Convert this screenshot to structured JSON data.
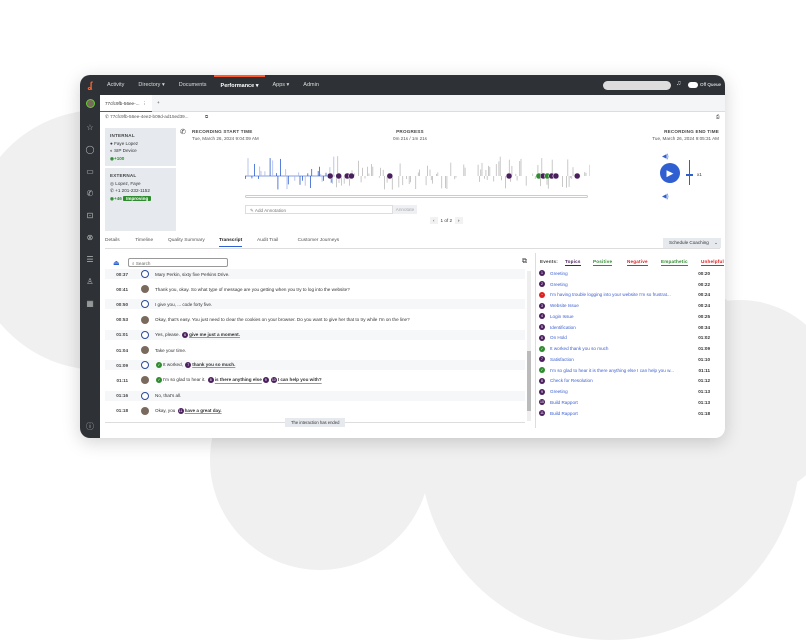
{
  "nav": {
    "items": [
      "Activity",
      "Directory ▾",
      "Documents",
      "Performance ▾",
      "Apps ▾",
      "Admin"
    ],
    "active": "Performance ▾",
    "queue": "Off Queue"
  },
  "tabbar": {
    "tab": "77cfc9fb-56ee-...",
    "add": "+"
  },
  "url": "77cfc9fb-56ee-4ee2-b09d-ad15ed39...",
  "internal": {
    "label": "INTERNAL",
    "name": "Faye Lopez",
    "device": "SIP Device",
    "score": "+100"
  },
  "external": {
    "label": "EXTERNAL",
    "name": "Lopez, Faye",
    "phone": "+1 201-232-1152",
    "score": "+46",
    "trend": "Improving"
  },
  "recording": {
    "start_label": "RECORDING START TIME",
    "start": "Tue, March 26, 2024 9:04:09 AM",
    "progress_label": "PROGRESS",
    "progress": "0m 21s / 1m 21s",
    "end_label": "RECORDING END TIME",
    "end": "Tue, March 26, 2024 9:05:31 AM",
    "played_fraction": 0.26,
    "speed": "x1"
  },
  "annotation": {
    "placeholder": "Add Annotation",
    "button": "Annotate"
  },
  "pager": {
    "text": "1 of 2"
  },
  "tabs": [
    "Details",
    "Timeline",
    "Quality Summary",
    "Transcript",
    "Audit Trail",
    "Customer Journeys"
  ],
  "active_tab": "Transcript",
  "schedule": "Schedule Coaching",
  "search_placeholder": "Search",
  "transcript": [
    {
      "t": "00:37",
      "who": "customer",
      "parts": [
        {
          "text": "Mary Perkin, sixty five Perkins Drive."
        }
      ]
    },
    {
      "t": "00:41",
      "who": "agent",
      "parts": [
        {
          "text": "Thank you, okay. So what type of message are you getting when you try to log into the website?"
        }
      ]
    },
    {
      "t": "00:50",
      "who": "customer",
      "parts": [
        {
          "text": "I give you, ... code forty five."
        }
      ]
    },
    {
      "t": "00:53",
      "who": "agent",
      "parts": [
        {
          "text": "Okay, that's easy. You just need to clear the cookies on your browser. Do you want to give her that to try while I'm on the line?"
        }
      ]
    },
    {
      "t": "01:01",
      "who": "customer",
      "parts": [
        {
          "text": "Yes, please. "
        },
        {
          "badge": "6",
          "c": "pu",
          "text": "give me just a moment.",
          "u": true
        }
      ]
    },
    {
      "t": "01:04",
      "who": "agent",
      "parts": [
        {
          "text": "Take your time."
        }
      ]
    },
    {
      "t": "01:09",
      "who": "customer",
      "parts": [
        {
          "badge": "✓",
          "c": "gr",
          "text": "It worked, "
        },
        {
          "badge": "7",
          "c": "pu",
          "text": "thank you so much.",
          "u": true
        }
      ]
    },
    {
      "t": "01:11",
      "who": "agent",
      "parts": [
        {
          "badge": "✓",
          "c": "gr",
          "text": "I'm so glad to hear it. "
        },
        {
          "badge": "8",
          "c": "pu",
          "text": "is there anything else",
          "u": true
        },
        {
          "badge": "9",
          "c": "pu",
          "text": ""
        },
        {
          "badge": "10",
          "c": "pu",
          "text": "I can help you with?",
          "u": true
        }
      ]
    },
    {
      "t": "01:16",
      "who": "customer",
      "parts": [
        {
          "text": "No, that's all."
        }
      ]
    },
    {
      "t": "01:18",
      "who": "agent",
      "parts": [
        {
          "text": "Okay, you "
        },
        {
          "badge": "11",
          "c": "pu",
          "text": "have a great day.",
          "u": true
        }
      ]
    }
  ],
  "ended": "The interaction has ended",
  "events": {
    "label": "Events:",
    "filters": [
      {
        "name": "Topics",
        "color": "#4b1f5e"
      },
      {
        "name": "Positive",
        "color": "#2e8b2e"
      },
      {
        "name": "Negative",
        "color": "#e02020"
      },
      {
        "name": "Empathetic",
        "color": "#2e8b2e"
      },
      {
        "name": "Unhelpful",
        "color": "#e02020"
      }
    ],
    "items": [
      {
        "b": "1",
        "c": "pu",
        "name": "Greeting",
        "t": "00:20",
        "s": 20
      },
      {
        "b": "2",
        "c": "pu",
        "name": "Greeting",
        "t": "00:22",
        "s": 22
      },
      {
        "b": "−",
        "c": "rd",
        "name": "I'm having trouble logging into your website I'm so frustrat...",
        "t": "00:24",
        "s": 24
      },
      {
        "b": "3",
        "c": "pu",
        "name": "Website Issue",
        "t": "00:24",
        "s": 24
      },
      {
        "b": "4",
        "c": "pu",
        "name": "Login Issue",
        "t": "00:25",
        "s": 25
      },
      {
        "b": "5",
        "c": "pu",
        "name": "Identification",
        "t": "00:34",
        "s": 34
      },
      {
        "b": "6",
        "c": "pu",
        "name": "On Hold",
        "t": "01:02",
        "s": 62
      },
      {
        "b": "✓",
        "c": "gr",
        "name": "It worked thank you so much",
        "t": "01:09",
        "s": 69
      },
      {
        "b": "7",
        "c": "pu",
        "name": "Satisfaction",
        "t": "01:10",
        "s": 70
      },
      {
        "b": "✓",
        "c": "gr",
        "name": "I'm so glad to hear it is there anything else I can help you w...",
        "t": "01:11",
        "s": 71
      },
      {
        "b": "8",
        "c": "pu",
        "name": "Check for Resolution",
        "t": "01:12",
        "s": 72
      },
      {
        "b": "9",
        "c": "pu",
        "name": "Greeting",
        "t": "01:13",
        "s": 73
      },
      {
        "b": "10",
        "c": "pu",
        "name": "Build Rapport",
        "t": "01:13",
        "s": 73
      },
      {
        "b": "11",
        "c": "pu",
        "name": "Build Rapport",
        "t": "01:18",
        "s": 78
      }
    ]
  },
  "colors": {
    "nav": "#2e3236",
    "accent": "#ff5b2e",
    "blue": "#2f5fd0"
  }
}
